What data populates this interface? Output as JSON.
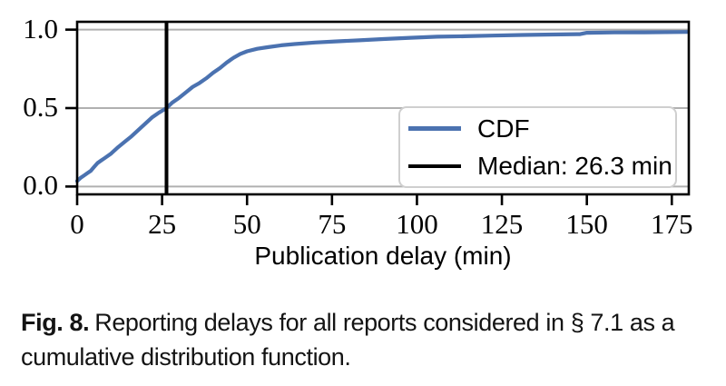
{
  "chart_data": {
    "type": "line",
    "subtype": "cdf",
    "title": "",
    "xlabel": "Publication delay (min)",
    "ylabel": "",
    "xlim": [
      0,
      180
    ],
    "ylim": [
      -0.05,
      1.05
    ],
    "xticks": [
      0,
      25,
      50,
      75,
      100,
      125,
      150,
      175
    ],
    "yticks": [
      {
        "value": 0.0,
        "label": "0.0"
      },
      {
        "value": 0.5,
        "label": "0.5"
      },
      {
        "value": 1.0,
        "label": "1.0"
      }
    ],
    "grid": "horizontal gridlines at y ticks",
    "median_min": 26.3,
    "colors": {
      "cdf": "#4b72b0",
      "median": "#000000",
      "grid": "#b0b0b0",
      "spine": "#000000"
    },
    "legend": {
      "position": "center-right inside plot",
      "items": [
        {
          "label": "CDF",
          "color": "#4b72b0"
        },
        {
          "label": "Median: 26.3 min",
          "color": "#000000"
        }
      ]
    },
    "series": [
      {
        "name": "CDF",
        "color": "#4b72b0",
        "x": [
          0,
          1,
          2,
          3,
          4,
          5,
          6,
          7,
          8,
          10,
          12,
          14,
          16,
          18,
          20,
          22,
          24,
          26.3,
          28,
          30,
          32,
          34,
          36,
          38,
          40,
          42,
          44,
          46,
          48,
          50,
          53,
          56,
          60,
          64,
          70,
          76,
          83,
          90,
          98,
          106,
          114,
          122,
          131,
          140,
          148,
          150,
          158,
          167,
          179.5
        ],
        "y": [
          0.035,
          0.055,
          0.07,
          0.085,
          0.1,
          0.125,
          0.15,
          0.165,
          0.18,
          0.21,
          0.25,
          0.285,
          0.32,
          0.36,
          0.4,
          0.44,
          0.47,
          0.5,
          0.535,
          0.565,
          0.6,
          0.635,
          0.66,
          0.69,
          0.725,
          0.755,
          0.79,
          0.82,
          0.845,
          0.862,
          0.878,
          0.888,
          0.9,
          0.908,
          0.918,
          0.925,
          0.932,
          0.94,
          0.948,
          0.955,
          0.958,
          0.962,
          0.966,
          0.969,
          0.971,
          0.98,
          0.982,
          0.983,
          0.985
        ]
      },
      {
        "name": "Median: 26.3 min",
        "color": "#000000",
        "vertical_line_at_x": 26.3
      }
    ]
  },
  "caption": {
    "label": "Fig. 8.",
    "text": "Reporting delays for all reports considered in § 7.1 as a cumulative distribution function."
  }
}
